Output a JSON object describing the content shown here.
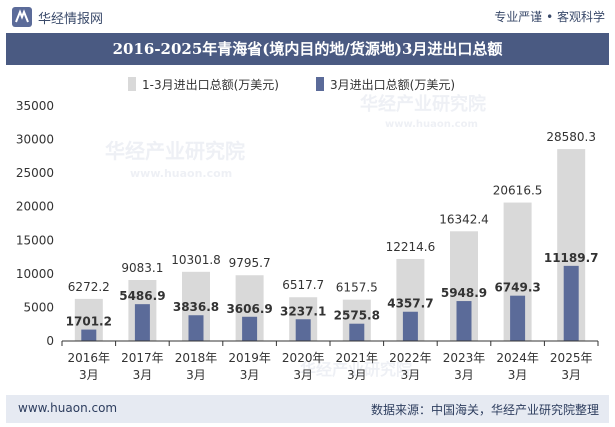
{
  "header": {
    "site_name": "华经情报网",
    "slogan": "专业严谨 • 客观科学"
  },
  "footer": {
    "url": "www.huaon.com",
    "source": "数据来源：中国海关，华经产业研究院整理"
  },
  "watermark": {
    "text": "华经产业研究院",
    "url": "www.huaon.com"
  },
  "colors": {
    "title_band": "#4a5a82",
    "series_total": "#d9d9d9",
    "series_march": "#5b6b99",
    "footer_band": "#e6eaf2"
  },
  "chart_data": {
    "type": "bar",
    "title": "2016-2025年青海省(境内目的地/货源地)3月进出口总额",
    "categories": [
      [
        "2016年",
        "3月"
      ],
      [
        "2017年",
        "3月"
      ],
      [
        "2018年",
        "3月"
      ],
      [
        "2019年",
        "3月"
      ],
      [
        "2020年",
        "3月"
      ],
      [
        "2021年",
        "3月"
      ],
      [
        "2022年",
        "3月"
      ],
      [
        "2023年",
        "3月"
      ],
      [
        "2024年",
        "3月"
      ],
      [
        "2025年",
        "3月"
      ]
    ],
    "series": [
      {
        "name": "1-3月进出口总额(万美元)",
        "values": [
          6272.2,
          9083.1,
          10301.8,
          9795.7,
          6517.7,
          6157.5,
          12214.6,
          16342.4,
          20616.5,
          28580.3
        ],
        "labels": [
          "6272.2",
          "9083.1",
          "10301.8",
          "9795.7",
          "6517.7",
          "6157.5",
          "12214.6",
          "16342.4",
          "20616.5",
          "28580.3"
        ]
      },
      {
        "name": "3月进出口总额(万美元)",
        "values": [
          1701.2,
          5486.9,
          3836.8,
          3606.9,
          3237.1,
          2575.8,
          4357.7,
          5948.9,
          6749.3,
          11189.7
        ],
        "labels": [
          "1701.2",
          "5486.9",
          "3836.8",
          "3606.9",
          "3237.1",
          "2575.8",
          "4357.7",
          "5948.9",
          "6749.3",
          "11189.7"
        ]
      }
    ],
    "ylim": [
      0,
      35000
    ],
    "yticks": [
      "0",
      "5000",
      "10000",
      "15000",
      "20000",
      "25000",
      "30000",
      "35000"
    ],
    "grid": false,
    "legend_position": "top-left"
  }
}
